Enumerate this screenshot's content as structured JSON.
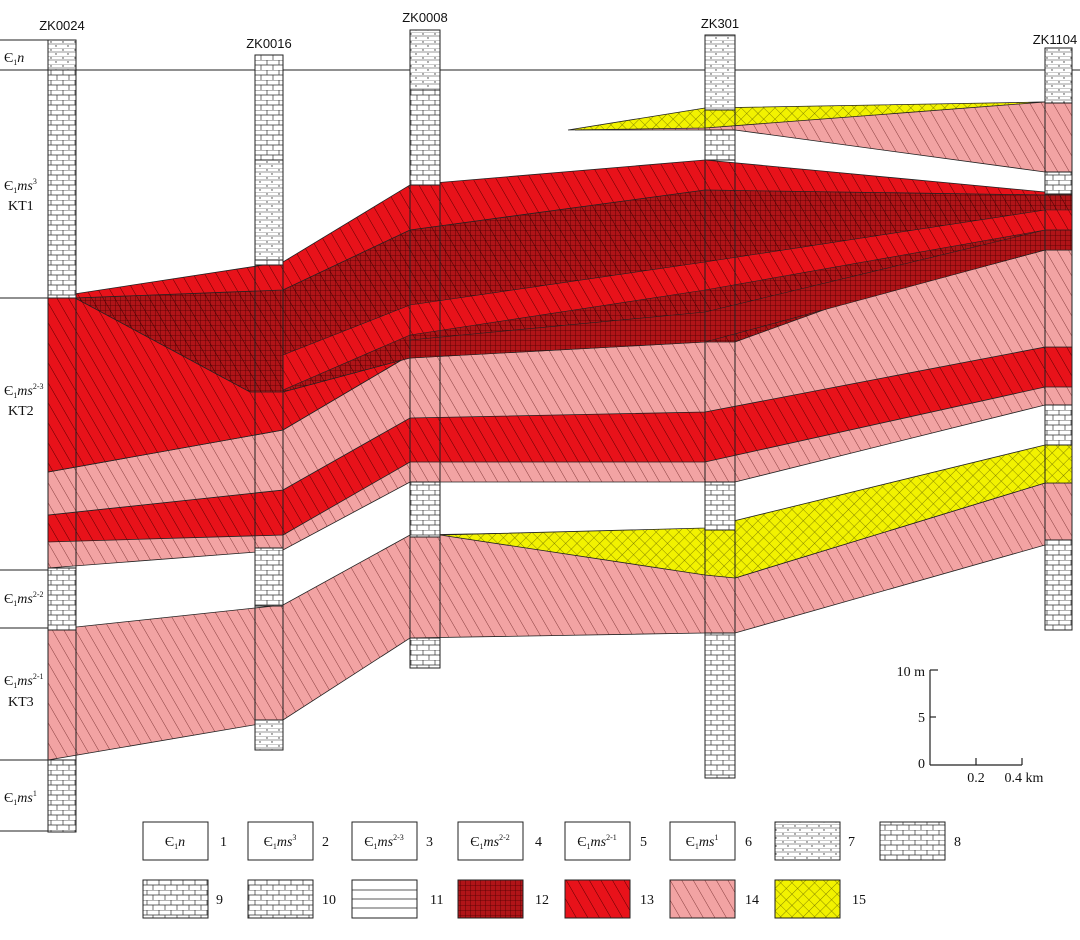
{
  "wells": [
    {
      "id": "ZK0024"
    },
    {
      "id": "ZK0016"
    },
    {
      "id": "ZK0008"
    },
    {
      "id": "ZK301"
    },
    {
      "id": "ZK1104"
    }
  ],
  "strata": [
    {
      "key": "n",
      "base": "Є",
      "sub": "1",
      "italic": "n",
      "sup": ""
    },
    {
      "key": "ms3",
      "base": "Є",
      "sub": "1",
      "italic": "ms",
      "sup": "3"
    },
    {
      "key": "ms23",
      "base": "Є",
      "sub": "1",
      "italic": "ms",
      "sup": "2-3"
    },
    {
      "key": "ms22",
      "base": "Є",
      "sub": "1",
      "italic": "ms",
      "sup": "2-2"
    },
    {
      "key": "ms21",
      "base": "Є",
      "sub": "1",
      "italic": "ms",
      "sup": "2-1"
    },
    {
      "key": "ms1",
      "base": "Є",
      "sub": "1",
      "italic": "ms",
      "sup": "1"
    }
  ],
  "ore_bodies": [
    "KT1",
    "KT2",
    "KT3"
  ],
  "scale": {
    "vertical": {
      "ticks": [
        "10 m",
        "5",
        "0"
      ]
    },
    "horizontal": {
      "ticks": [
        "0.2",
        "0.4 km"
      ]
    }
  },
  "legend": [
    {
      "num": "1",
      "type": "stratum",
      "stratum": "n"
    },
    {
      "num": "2",
      "type": "stratum",
      "stratum": "ms3"
    },
    {
      "num": "3",
      "type": "stratum",
      "stratum": "ms23"
    },
    {
      "num": "4",
      "type": "stratum",
      "stratum": "ms22"
    },
    {
      "num": "5",
      "type": "stratum",
      "stratum": "ms21"
    },
    {
      "num": "6",
      "type": "stratum",
      "stratum": "ms1"
    },
    {
      "num": "7",
      "type": "lithology",
      "pattern": "carbonaceous-siltstone"
    },
    {
      "num": "8",
      "type": "lithology",
      "pattern": "phosphatic-dolomite"
    },
    {
      "num": "9",
      "type": "lithology",
      "pattern": "siliceous-phosphatic-dolomite"
    },
    {
      "num": "10",
      "type": "lithology",
      "pattern": "phosphatic-argillaceous-dolomite"
    },
    {
      "num": "11",
      "type": "lithology",
      "pattern": "laminated-rock"
    },
    {
      "num": "12",
      "type": "ore",
      "pattern": "dark-red-grid"
    },
    {
      "num": "13",
      "type": "ore",
      "pattern": "red-hatch"
    },
    {
      "num": "14",
      "type": "ore",
      "pattern": "pink-hatch"
    },
    {
      "num": "15",
      "type": "ore",
      "pattern": "yellow-crosshatch"
    }
  ],
  "colors": {
    "dark_red": "#b01418",
    "red": "#e8121a",
    "pink": "#f2a3a3",
    "yellow": "#f2f200",
    "line": "#222222"
  }
}
